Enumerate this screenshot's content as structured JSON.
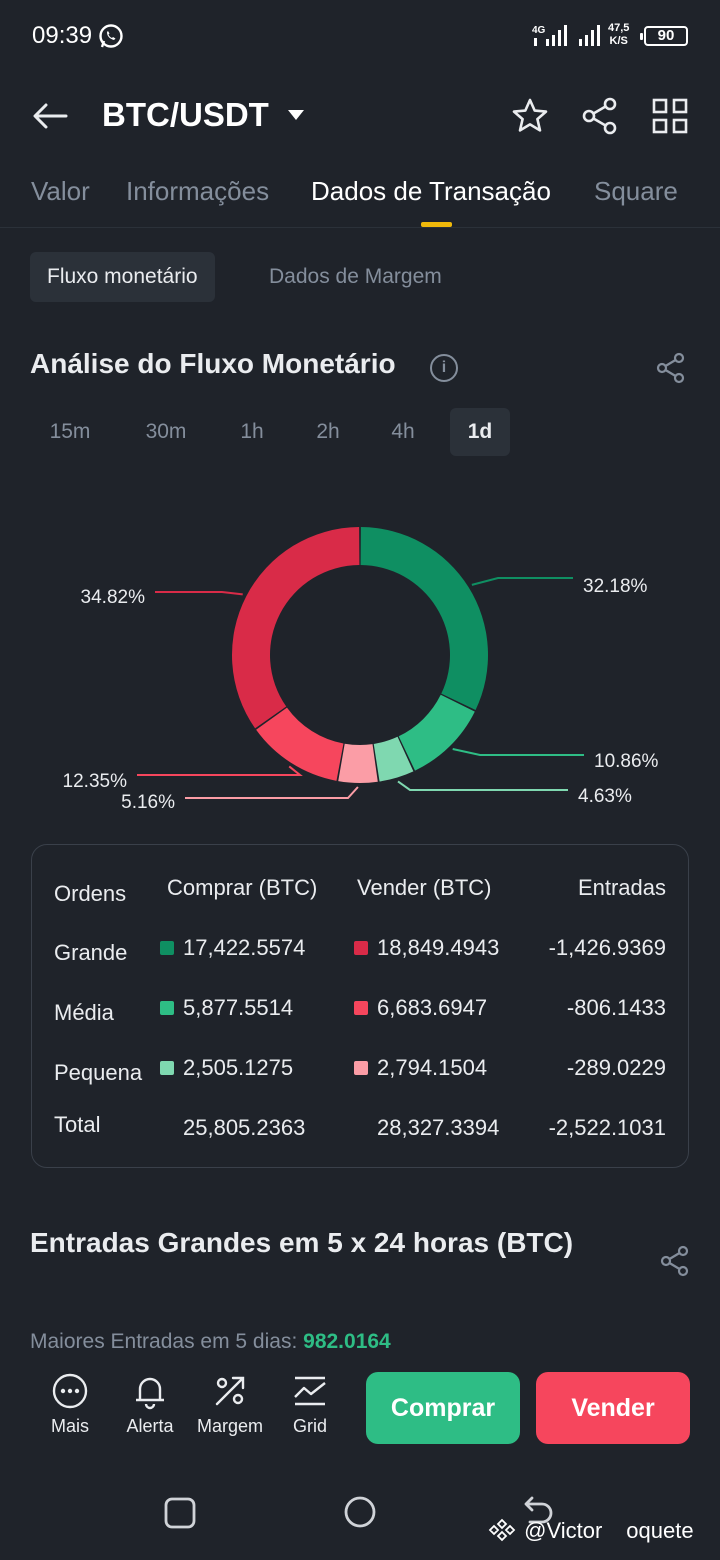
{
  "status": {
    "time": "09:39",
    "network": "4G",
    "speed_value": "47,5",
    "speed_unit": "K/S",
    "battery": "90"
  },
  "header": {
    "pair": "BTC/USDT"
  },
  "tabs": [
    {
      "label": "Valor"
    },
    {
      "label": "Informações"
    },
    {
      "label": "Dados de Transação"
    },
    {
      "label": "Square"
    }
  ],
  "subtabs": [
    {
      "label": "Fluxo monetário"
    },
    {
      "label": "Dados de Margem"
    }
  ],
  "section": {
    "title": "Análise do Fluxo Monetário",
    "info": "i"
  },
  "periods": [
    {
      "label": "15m"
    },
    {
      "label": "30m"
    },
    {
      "label": "1h"
    },
    {
      "label": "2h"
    },
    {
      "label": "4h"
    },
    {
      "label": "1d"
    }
  ],
  "selected_period": "1d",
  "colors": {
    "buy_large": "#0f8f62",
    "buy_medium": "#2ebd85",
    "buy_small": "#7fd8b0",
    "sell_large": "#d92b48",
    "sell_medium": "#f6465d",
    "sell_small": "#fb9da6",
    "accent": "#f0b90b"
  },
  "chart_data": {
    "type": "pie",
    "slices": [
      {
        "label": "Compra grande",
        "value": 32.18,
        "text": "32.18%"
      },
      {
        "label": "Compra média",
        "value": 10.86,
        "text": "10.86%"
      },
      {
        "label": "Compra pequena",
        "value": 4.63,
        "text": "4.63%"
      },
      {
        "label": "Venda pequena",
        "value": 5.16,
        "text": "5.16%"
      },
      {
        "label": "Venda média",
        "value": 12.35,
        "text": "12.35%"
      },
      {
        "label": "Venda grande",
        "value": 34.82,
        "text": "34.82%"
      }
    ]
  },
  "table": {
    "headers": {
      "orders": "Ordens",
      "buy": "Comprar (BTC)",
      "sell": "Vender (BTC)",
      "inflow": "Entradas"
    },
    "rows": [
      {
        "name": "Grande",
        "buy": "17,422.5574",
        "sell": "18,849.4943",
        "inflow": "-1,426.9369"
      },
      {
        "name": "Média",
        "buy": "5,877.5514",
        "sell": "6,683.6947",
        "inflow": "-806.1433"
      },
      {
        "name": "Pequena",
        "buy": "2,505.1275",
        "sell": "2,794.1504",
        "inflow": "-289.0229"
      },
      {
        "name": "Total",
        "buy": "25,805.2363",
        "sell": "28,327.3394",
        "inflow": "-2,522.1031"
      }
    ]
  },
  "big_inflows": {
    "title": "Entradas Grandes em 5 x 24 horas (BTC)",
    "subtitle": "Maiores Entradas em 5 dias:",
    "value": "982.0164"
  },
  "bottom": {
    "actions": [
      {
        "label": "Mais"
      },
      {
        "label": "Alerta"
      },
      {
        "label": "Margem"
      },
      {
        "label": "Grid"
      }
    ],
    "buy": "Comprar",
    "sell": "Vender"
  },
  "watermark": {
    "name": "@Victor",
    "suffix": "oquete"
  }
}
